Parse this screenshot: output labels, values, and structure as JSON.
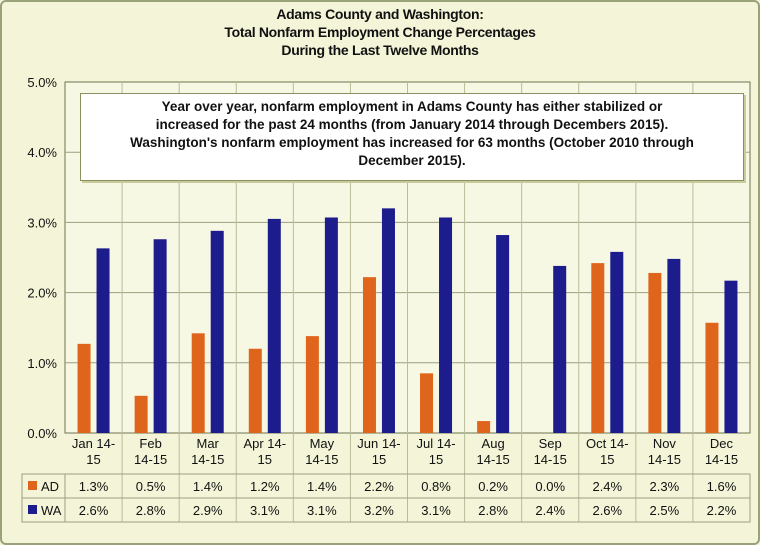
{
  "title_lines": [
    "Adams County and Washington:",
    "Total Nonfarm Employment Change Percentages",
    "During the Last Twelve Months"
  ],
  "annotation_lines": [
    "Year over year, nonfarm employment in Adams County has either stabilized or",
    "increased for the past 24 months (from January 2014 through Decembers 2015).",
    "Washington's nonfarm employment has increased for 63 months (October 2010 through",
    "December 2015)."
  ],
  "chart_data": {
    "type": "bar",
    "title": "Adams County and Washington: Total Nonfarm Employment Change Percentages During the Last Twelve Months",
    "categories": [
      [
        "Jan 14-",
        "15"
      ],
      [
        "Feb",
        "14-15"
      ],
      [
        "Mar",
        "14-15"
      ],
      [
        "Apr 14-",
        "15"
      ],
      [
        "May",
        "14-15"
      ],
      [
        "Jun 14-",
        "15"
      ],
      [
        "Jul 14-",
        "15"
      ],
      [
        "Aug",
        "14-15"
      ],
      [
        "Sep",
        "14-15"
      ],
      [
        "Oct 14-",
        "15"
      ],
      [
        "Nov",
        "14-15"
      ],
      [
        "Dec",
        "14-15"
      ]
    ],
    "series": [
      {
        "name": "AD",
        "color": "#e0651c",
        "values": [
          1.27,
          0.53,
          1.42,
          1.2,
          1.38,
          2.22,
          0.85,
          0.17,
          0.0,
          2.42,
          2.28,
          1.57
        ],
        "labels": [
          "1.3%",
          "0.5%",
          "1.4%",
          "1.2%",
          "1.4%",
          "2.2%",
          "0.8%",
          "0.2%",
          "0.0%",
          "2.4%",
          "2.3%",
          "1.6%"
        ]
      },
      {
        "name": "WA",
        "color": "#1c1c8c",
        "values": [
          2.63,
          2.76,
          2.88,
          3.05,
          3.07,
          3.2,
          3.07,
          2.82,
          2.38,
          2.58,
          2.48,
          2.17
        ],
        "labels": [
          "2.6%",
          "2.8%",
          "2.9%",
          "3.1%",
          "3.1%",
          "3.2%",
          "3.1%",
          "2.8%",
          "2.4%",
          "2.6%",
          "2.5%",
          "2.2%"
        ]
      }
    ],
    "yticks": [
      "0.0%",
      "1.0%",
      "2.0%",
      "3.0%",
      "4.0%",
      "5.0%"
    ],
    "ylim": [
      0,
      5
    ],
    "grid": true,
    "legend": "data-table"
  }
}
